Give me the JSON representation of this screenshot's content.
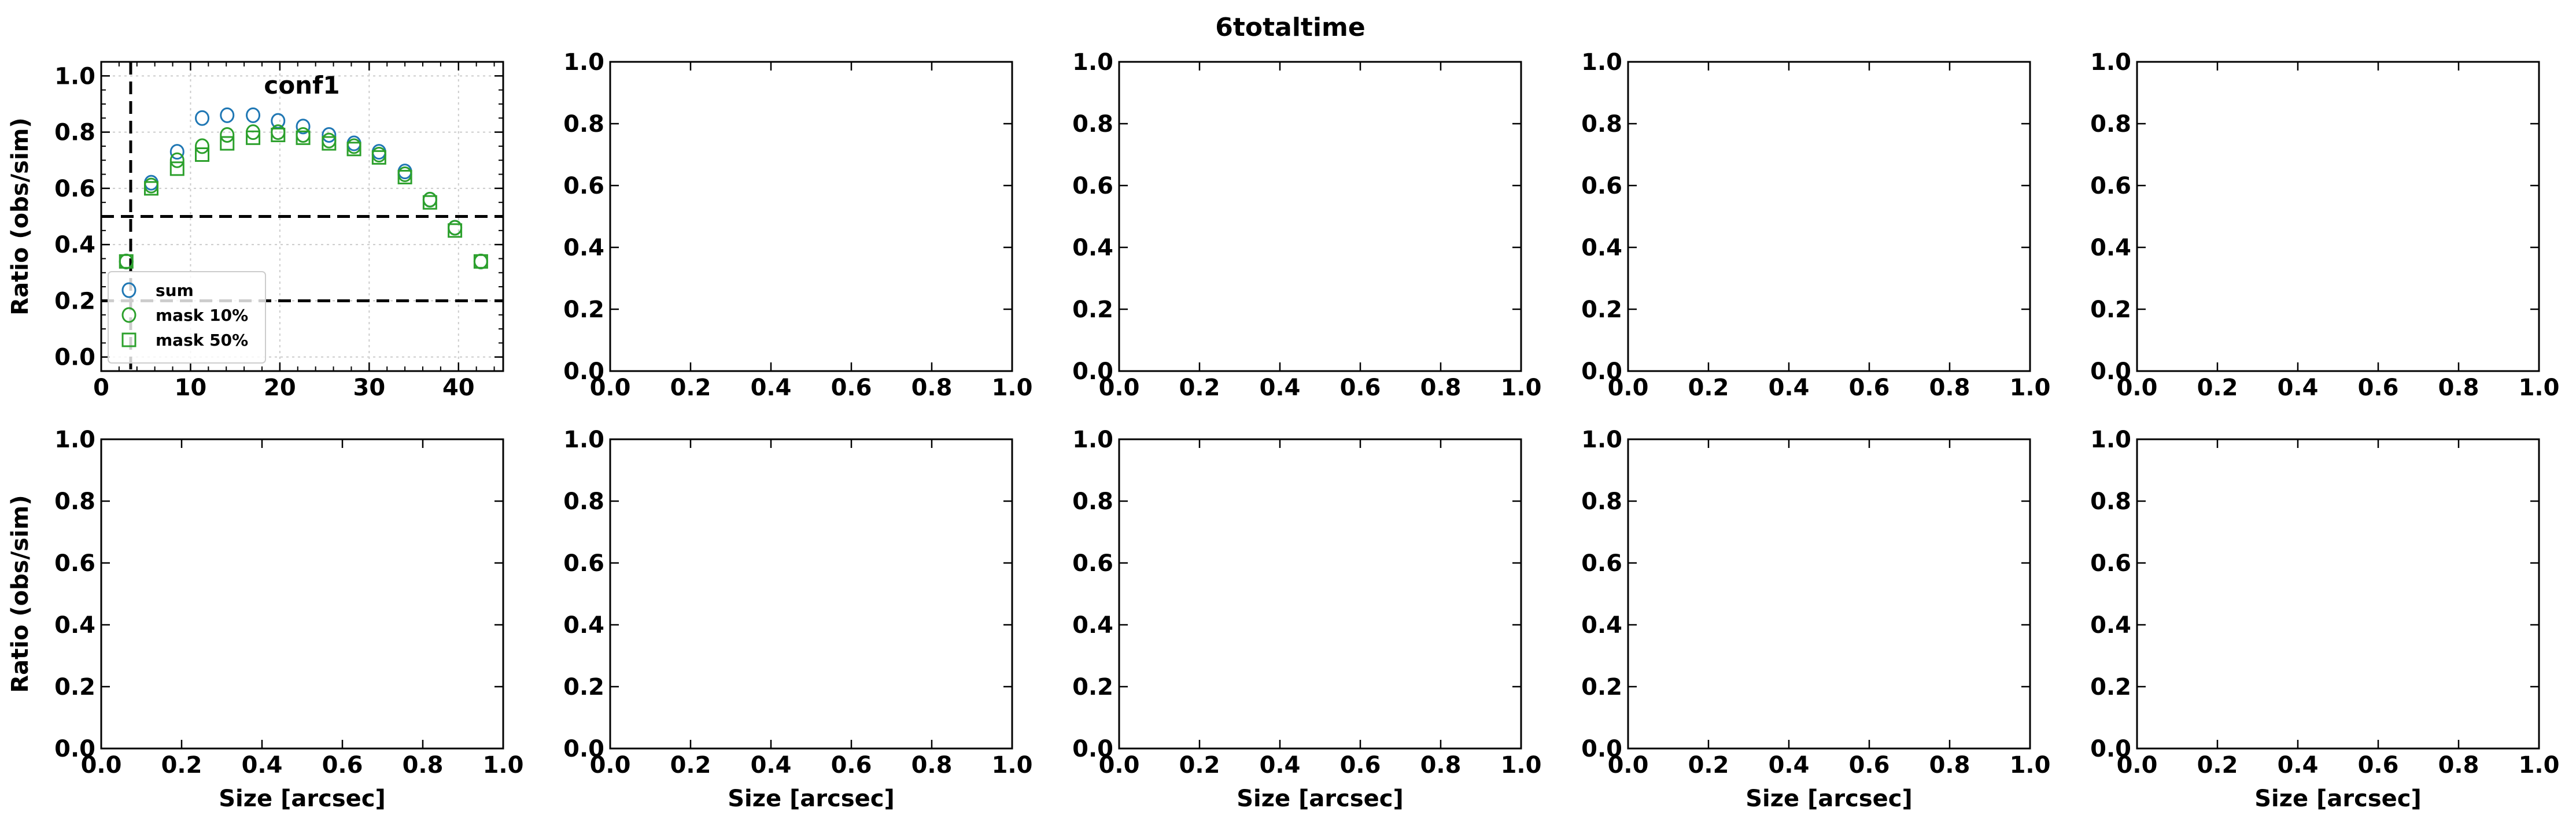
{
  "figure": {
    "suptitle": "6totaltime"
  },
  "chart_data": [
    {
      "type": "scatter",
      "title": "conf1",
      "xlabel": "",
      "ylabel": "Ratio (obs/sim)",
      "xlim": [
        0,
        45
      ],
      "ylim": [
        -0.05,
        1.05
      ],
      "xticks": [
        "0",
        "10",
        "20",
        "30",
        "40"
      ],
      "yticks": [
        "0.0",
        "0.2",
        "0.4",
        "0.6",
        "0.8",
        "1.0"
      ],
      "xminor_step": 2,
      "yminor_step": 0.05,
      "grid": true,
      "legend": "lower-left",
      "hlines": [
        0.5,
        0.2
      ],
      "vlines": [
        3.3
      ],
      "series": [
        {
          "name": "sum",
          "marker": "circle",
          "color": "#1f77b4",
          "x": [
            2.8,
            5.6,
            8.5,
            11.3,
            14.1,
            17.0,
            19.8,
            22.6,
            25.5,
            28.3,
            31.1,
            34.0,
            36.8,
            39.6,
            42.5
          ],
          "y": [
            0.34,
            0.62,
            0.73,
            0.85,
            0.86,
            0.86,
            0.84,
            0.82,
            0.79,
            0.76,
            0.73,
            0.66,
            0.56,
            0.46,
            0.34
          ]
        },
        {
          "name": "mask 10%",
          "marker": "circle",
          "color": "#2ca02c",
          "x": [
            2.8,
            5.6,
            8.5,
            11.3,
            14.1,
            17.0,
            19.8,
            22.6,
            25.5,
            28.3,
            31.1,
            34.0,
            36.8,
            39.6,
            42.5
          ],
          "y": [
            0.34,
            0.61,
            0.7,
            0.75,
            0.79,
            0.8,
            0.8,
            0.79,
            0.77,
            0.75,
            0.72,
            0.65,
            0.56,
            0.46,
            0.34
          ]
        },
        {
          "name": "mask 50%",
          "marker": "square",
          "color": "#2ca02c",
          "x": [
            2.8,
            5.6,
            8.5,
            11.3,
            14.1,
            17.0,
            19.8,
            22.6,
            25.5,
            28.3,
            31.1,
            34.0,
            36.8,
            39.6,
            42.5
          ],
          "y": [
            0.34,
            0.6,
            0.67,
            0.72,
            0.76,
            0.78,
            0.79,
            0.78,
            0.76,
            0.74,
            0.71,
            0.64,
            0.55,
            0.45,
            0.34
          ]
        }
      ]
    },
    {
      "type": "scatter",
      "title": "",
      "xlabel": "",
      "ylabel": "",
      "xlim": [
        0,
        1
      ],
      "ylim": [
        0,
        1
      ],
      "xticks": [
        "0.0",
        "0.2",
        "0.4",
        "0.6",
        "0.8",
        "1.0"
      ],
      "yticks": [
        "0.0",
        "0.2",
        "0.4",
        "0.6",
        "0.8",
        "1.0"
      ],
      "series": []
    },
    {
      "type": "scatter",
      "title": "",
      "xlabel": "",
      "ylabel": "",
      "xlim": [
        0,
        1
      ],
      "ylim": [
        0,
        1
      ],
      "xticks": [
        "0.0",
        "0.2",
        "0.4",
        "0.6",
        "0.8",
        "1.0"
      ],
      "yticks": [
        "0.0",
        "0.2",
        "0.4",
        "0.6",
        "0.8",
        "1.0"
      ],
      "series": []
    },
    {
      "type": "scatter",
      "title": "",
      "xlabel": "",
      "ylabel": "",
      "xlim": [
        0,
        1
      ],
      "ylim": [
        0,
        1
      ],
      "xticks": [
        "0.0",
        "0.2",
        "0.4",
        "0.6",
        "0.8",
        "1.0"
      ],
      "yticks": [
        "0.0",
        "0.2",
        "0.4",
        "0.6",
        "0.8",
        "1.0"
      ],
      "series": []
    },
    {
      "type": "scatter",
      "title": "",
      "xlabel": "",
      "ylabel": "",
      "xlim": [
        0,
        1
      ],
      "ylim": [
        0,
        1
      ],
      "xticks": [
        "0.0",
        "0.2",
        "0.4",
        "0.6",
        "0.8",
        "1.0"
      ],
      "yticks": [
        "0.0",
        "0.2",
        "0.4",
        "0.6",
        "0.8",
        "1.0"
      ],
      "series": []
    },
    {
      "type": "scatter",
      "title": "",
      "xlabel": "Size [arcsec]",
      "ylabel": "Ratio (obs/sim)",
      "xlim": [
        0,
        1
      ],
      "ylim": [
        0,
        1
      ],
      "xticks": [
        "0.0",
        "0.2",
        "0.4",
        "0.6",
        "0.8",
        "1.0"
      ],
      "yticks": [
        "0.0",
        "0.2",
        "0.4",
        "0.6",
        "0.8",
        "1.0"
      ],
      "series": []
    },
    {
      "type": "scatter",
      "title": "",
      "xlabel": "Size [arcsec]",
      "ylabel": "",
      "xlim": [
        0,
        1
      ],
      "ylim": [
        0,
        1
      ],
      "xticks": [
        "0.0",
        "0.2",
        "0.4",
        "0.6",
        "0.8",
        "1.0"
      ],
      "yticks": [
        "0.0",
        "0.2",
        "0.4",
        "0.6",
        "0.8",
        "1.0"
      ],
      "series": []
    },
    {
      "type": "scatter",
      "title": "",
      "xlabel": "Size [arcsec]",
      "ylabel": "",
      "xlim": [
        0,
        1
      ],
      "ylim": [
        0,
        1
      ],
      "xticks": [
        "0.0",
        "0.2",
        "0.4",
        "0.6",
        "0.8",
        "1.0"
      ],
      "yticks": [
        "0.0",
        "0.2",
        "0.4",
        "0.6",
        "0.8",
        "1.0"
      ],
      "series": []
    },
    {
      "type": "scatter",
      "title": "",
      "xlabel": "Size [arcsec]",
      "ylabel": "",
      "xlim": [
        0,
        1
      ],
      "ylim": [
        0,
        1
      ],
      "xticks": [
        "0.0",
        "0.2",
        "0.4",
        "0.6",
        "0.8",
        "1.0"
      ],
      "yticks": [
        "0.0",
        "0.2",
        "0.4",
        "0.6",
        "0.8",
        "1.0"
      ],
      "series": []
    },
    {
      "type": "scatter",
      "title": "",
      "xlabel": "Size [arcsec]",
      "ylabel": "",
      "xlim": [
        0,
        1
      ],
      "ylim": [
        0,
        1
      ],
      "xticks": [
        "0.0",
        "0.2",
        "0.4",
        "0.6",
        "0.8",
        "1.0"
      ],
      "yticks": [
        "0.0",
        "0.2",
        "0.4",
        "0.6",
        "0.8",
        "1.0"
      ],
      "series": []
    }
  ]
}
